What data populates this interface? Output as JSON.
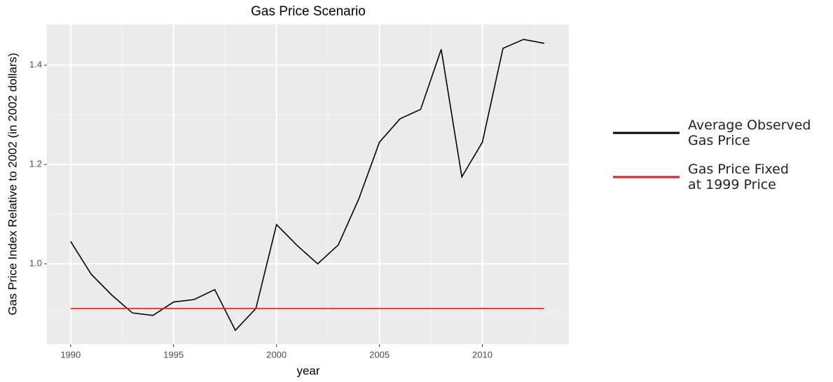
{
  "chart_data": {
    "type": "line",
    "title": "Gas Price Scenario",
    "x_label": "year",
    "y_label": "Gas Price Index Relative to 2002 (in 2002 dollars)",
    "xlim": [
      1988.85,
      2014.2
    ],
    "ylim": [
      0.838,
      1.482
    ],
    "xticks": [
      1990,
      1995,
      2000,
      2005,
      2010
    ],
    "yticks": [
      {
        "value": 1.0,
        "label": "1.0"
      },
      {
        "value": 1.2,
        "label": "1.2"
      },
      {
        "value": 1.4,
        "label": "1.4"
      }
    ],
    "grid": true,
    "series": [
      {
        "name": "Average Observed\nGas Price",
        "color": "#000000",
        "x": [
          1990,
          1991,
          1992,
          1993,
          1994,
          1995,
          1996,
          1997,
          1998,
          1999,
          2000,
          2001,
          2002,
          2003,
          2004,
          2005,
          2006,
          2007,
          2008,
          2009,
          2010,
          2011,
          2012,
          2013
        ],
        "values": [
          1.045,
          0.979,
          0.937,
          0.901,
          0.896,
          0.923,
          0.928,
          0.948,
          0.866,
          0.91,
          1.079,
          1.037,
          1.0,
          1.038,
          1.131,
          1.245,
          1.292,
          1.311,
          1.432,
          1.175,
          1.245,
          1.434,
          1.452,
          1.444
        ]
      },
      {
        "name": "Gas Price Fixed\nat 1999 Price",
        "color": "#e41a1c",
        "x": [
          1990,
          2013
        ],
        "values": [
          0.91,
          0.91
        ]
      }
    ]
  }
}
